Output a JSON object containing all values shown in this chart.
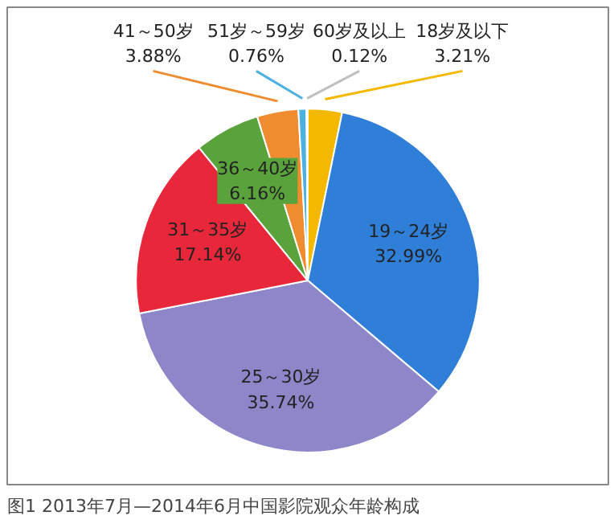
{
  "chart_data": {
    "type": "pie",
    "title": "图1 2013年7月—2014年6月中国影院观众年龄构成",
    "categories": [
      "18岁及以下",
      "19～24岁",
      "25～30岁",
      "31～35岁",
      "36～40岁",
      "41～50岁",
      "51岁～59岁",
      "60岁及以上"
    ],
    "values": [
      3.21,
      32.99,
      35.74,
      17.14,
      6.16,
      3.88,
      0.76,
      0.12
    ],
    "value_labels": [
      "3.21%",
      "32.99%",
      "35.74%",
      "17.14%",
      "6.16%",
      "3.88%",
      "0.76%",
      "0.12%"
    ],
    "colors": [
      "#f5b800",
      "#2f7ed8",
      "#8d86c9",
      "#e8283a",
      "#5aa33c",
      "#f08c30",
      "#4cb0e0",
      "#c0c0c0"
    ]
  }
}
